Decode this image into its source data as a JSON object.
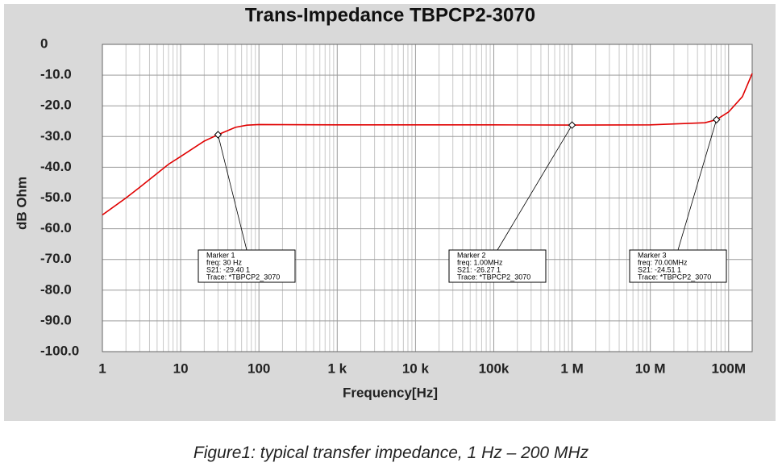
{
  "chart_data": {
    "type": "line",
    "title": "Trans-Impedance TBPCP2-3070",
    "x_label": "Frequency[Hz]",
    "y_label": "dB Ohm",
    "log_x": true,
    "grid": true,
    "minor_grid": true,
    "xlim": [
      1,
      200000000
    ],
    "ylim": [
      -100,
      0
    ],
    "xticks": [
      1,
      10,
      100,
      {
        "value": 1000,
        "label": "1  k"
      },
      {
        "value": 10000,
        "label": "10 k"
      },
      {
        "value": 100000,
        "label": "100k"
      },
      {
        "value": 1000000,
        "label": "1  M"
      },
      {
        "value": 10000000,
        "label": "10 M"
      },
      {
        "value": 100000000,
        "label": "100M"
      }
    ],
    "yticks": [
      0,
      {
        "value": -10,
        "label": "-10.0"
      },
      {
        "value": -20,
        "label": "-20.0"
      },
      {
        "value": -30,
        "label": "-30.0"
      },
      {
        "value": -40,
        "label": "-40.0"
      },
      {
        "value": -50,
        "label": "-50.0"
      },
      {
        "value": -60,
        "label": "-60.0"
      },
      {
        "value": -70,
        "label": "-70.0"
      },
      {
        "value": -80,
        "label": "-80.0"
      },
      {
        "value": -90,
        "label": "-90.0"
      },
      {
        "value": -100,
        "label": "-100.0"
      }
    ],
    "x": [
      1,
      2,
      3,
      5,
      7,
      10,
      20,
      30,
      50,
      70,
      100,
      1000,
      10000,
      100000,
      1000000,
      10000000,
      50000000,
      70000000,
      100000000,
      150000000,
      200000000
    ],
    "series": [
      {
        "name": "TBPCP2_3070",
        "color": "#e00000",
        "values": [
          -55.5,
          -50,
          -46.5,
          -42,
          -39,
          -36.5,
          -31.5,
          -29.4,
          -27,
          -26.3,
          -26.1,
          -26.2,
          -26.2,
          -26.2,
          -26.27,
          -26.2,
          -25.5,
          -24.51,
          -22,
          -17,
          -9.5
        ]
      }
    ],
    "markers": [
      {
        "x": 30,
        "y": -29.4,
        "lines": [
          "Marker 1",
          "freq: 30  Hz",
          "S21: -29.40 1",
          "Trace: *TBPCP2_3070"
        ]
      },
      {
        "x": 1000000,
        "y": -26.27,
        "lines": [
          "Marker 2",
          "freq: 1.00MHz",
          "S21: -26.27 1",
          "Trace: *TBPCP2_3070"
        ]
      },
      {
        "x": 70000000,
        "y": -24.51,
        "lines": [
          "Marker 3",
          "freq: 70.00MHz",
          "S21: -24.51 1",
          "Trace: *TBPCP2_3070"
        ]
      }
    ],
    "caption": "Figure1: typical transfer impedance, 1 Hz – 200 MHz"
  }
}
